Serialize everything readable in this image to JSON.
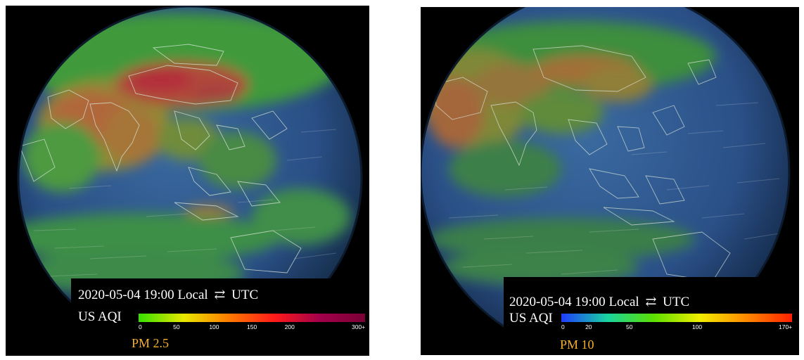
{
  "maps": [
    {
      "datetime": "2020-05-04 19:00",
      "mode_local": "Local",
      "mode_separator": "⇄",
      "mode_utc": "UTC",
      "scale_label": "US AQI",
      "pollutant": "PM 2.5",
      "ticks": [
        {
          "label": "0",
          "value": 0
        },
        {
          "label": "50",
          "value": 50
        },
        {
          "label": "100",
          "value": 100
        },
        {
          "label": "150",
          "value": 150
        },
        {
          "label": "200",
          "value": 200
        },
        {
          "label": "300+",
          "value": 300
        }
      ],
      "colors": [
        "#36e000",
        "#e8e800",
        "#ff7a00",
        "#ff1a1a",
        "#a3004a",
        "#7a0035"
      ]
    },
    {
      "datetime": "2020-05-04 19:00",
      "mode_local": "Local",
      "mode_separator": "⇄",
      "mode_utc": "UTC",
      "scale_label": "US AQI",
      "pollutant": "PM 10",
      "ticks": [
        {
          "label": "0",
          "value": 0
        },
        {
          "label": "20",
          "value": 20
        },
        {
          "label": "50",
          "value": 50
        },
        {
          "label": "100",
          "value": 100
        },
        {
          "label": "170+",
          "value": 170
        }
      ],
      "colors": [
        "#1e3cff",
        "#19d4a0",
        "#5be000",
        "#f0ee00",
        "#ff8a00",
        "#ff2000"
      ]
    }
  ]
}
